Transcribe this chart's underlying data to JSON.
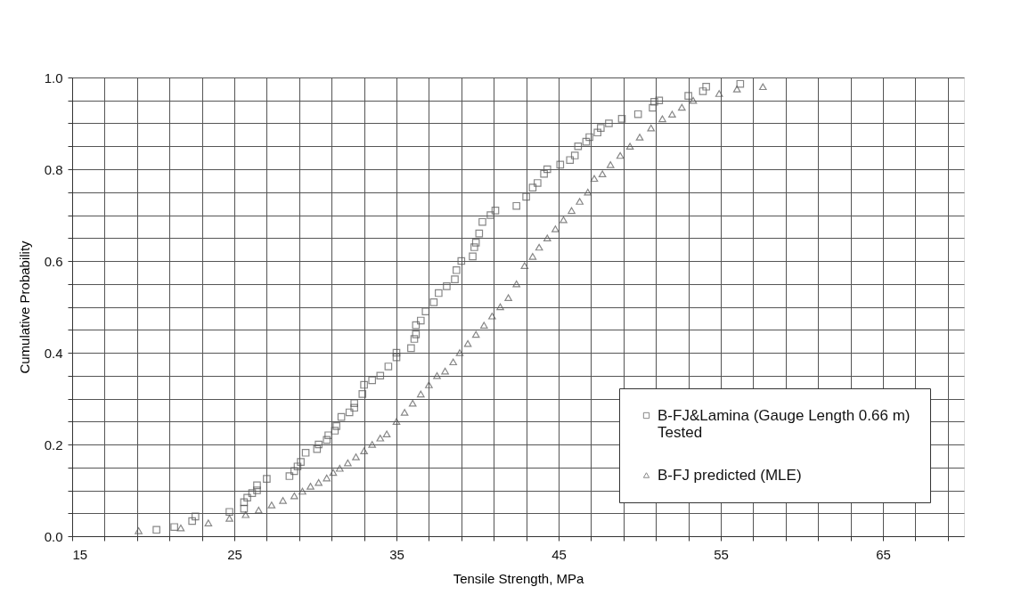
{
  "chart_data": {
    "type": "scatter",
    "xlabel": "Tensile Strength, MPa",
    "ylabel": "Cumulative Probability",
    "xlim": [
      15,
      70
    ],
    "ylim": [
      0,
      1
    ],
    "xticks": [
      15,
      {
        "value": 17,
        "label": null
      },
      {
        "value": 19,
        "label": null
      },
      {
        "value": 21,
        "label": null
      },
      {
        "value": 23,
        "label": null
      },
      25,
      {
        "value": 27,
        "label": null
      },
      {
        "value": 29,
        "label": null
      },
      {
        "value": 31,
        "label": null
      },
      {
        "value": 33,
        "label": null
      },
      35,
      {
        "value": 37,
        "label": null
      },
      {
        "value": 39,
        "label": null
      },
      {
        "value": 41,
        "label": null
      },
      {
        "value": 43,
        "label": null
      },
      45,
      {
        "value": 47,
        "label": null
      },
      {
        "value": 49,
        "label": null
      },
      {
        "value": 51,
        "label": null
      },
      {
        "value": 53,
        "label": null
      },
      55,
      {
        "value": 57,
        "label": null
      },
      {
        "value": 59,
        "label": null
      },
      {
        "value": 61,
        "label": null
      },
      {
        "value": 63,
        "label": null
      },
      65,
      {
        "value": 67,
        "label": null
      },
      {
        "value": 69,
        "label": null
      }
    ],
    "yticks": [
      {
        "value": 0,
        "label": "0.0"
      },
      {
        "value": 0.05,
        "label": null
      },
      {
        "value": 0.1,
        "label": null
      },
      {
        "value": 0.15,
        "label": null
      },
      0.2,
      {
        "value": 0.25,
        "label": null
      },
      {
        "value": 0.3,
        "label": null
      },
      {
        "value": 0.35,
        "label": null
      },
      0.4,
      {
        "value": 0.45,
        "label": null
      },
      {
        "value": 0.5,
        "label": null
      },
      {
        "value": 0.55,
        "label": null
      },
      0.6,
      {
        "value": 0.65,
        "label": null
      },
      {
        "value": 0.7,
        "label": null
      },
      {
        "value": 0.75,
        "label": null
      },
      0.8,
      {
        "value": 0.85,
        "label": null
      },
      {
        "value": 0.9,
        "label": null
      },
      {
        "value": 0.95,
        "label": null
      },
      {
        "value": 1,
        "label": "1.0"
      }
    ],
    "grid": true,
    "legend": "bottom right",
    "series": [
      {
        "name": "B-FJ&Lamina (Gauge Length 0.66 m) Tested",
        "color": "#555555",
        "marker": "square",
        "x": [
          20.2,
          21.3,
          22.4,
          22.6,
          24.7,
          25.6,
          25.6,
          25.8,
          26.1,
          26.4,
          26.4,
          27.0,
          28.4,
          28.7,
          28.9,
          29.1,
          29.4,
          30.1,
          30.2,
          30.7,
          30.8,
          31.2,
          31.3,
          31.6,
          32.1,
          32.4,
          32.4,
          32.9,
          33.0,
          33.5,
          34.0,
          34.5,
          35.0,
          35.0,
          35.9,
          36.1,
          36.2,
          36.2,
          36.5,
          36.8,
          37.3,
          37.6,
          38.1,
          38.6,
          38.7,
          39.0,
          39.7,
          39.8,
          39.9,
          40.1,
          40.3,
          40.8,
          41.1,
          42.4,
          43.0,
          43.4,
          43.7,
          44.1,
          44.3,
          45.1,
          45.7,
          46.0,
          46.2,
          46.7,
          46.9,
          47.4,
          47.6,
          48.1,
          48.9,
          49.9,
          50.8,
          50.9,
          51.2,
          53.0,
          53.9,
          54.1,
          56.2
        ],
        "values": [
          0.014,
          0.02,
          0.033,
          0.043,
          0.053,
          0.06,
          0.074,
          0.084,
          0.094,
          0.1,
          0.111,
          0.125,
          0.131,
          0.142,
          0.152,
          0.162,
          0.182,
          0.19,
          0.2,
          0.21,
          0.22,
          0.23,
          0.24,
          0.26,
          0.27,
          0.28,
          0.29,
          0.31,
          0.33,
          0.34,
          0.35,
          0.37,
          0.39,
          0.4,
          0.41,
          0.43,
          0.44,
          0.46,
          0.47,
          0.49,
          0.51,
          0.53,
          0.545,
          0.56,
          0.58,
          0.6,
          0.61,
          0.63,
          0.64,
          0.66,
          0.685,
          0.7,
          0.71,
          0.72,
          0.74,
          0.76,
          0.77,
          0.79,
          0.8,
          0.81,
          0.82,
          0.83,
          0.85,
          0.86,
          0.87,
          0.88,
          0.89,
          0.9,
          0.91,
          0.92,
          0.934,
          0.947,
          0.95,
          0.96,
          0.97,
          0.98,
          0.986
        ]
      },
      {
        "name": "B-FJ predicted (MLE)",
        "color": "#555555",
        "marker": "triangle",
        "x": [
          19.1,
          21.7,
          23.4,
          24.7,
          25.7,
          26.5,
          27.3,
          28.0,
          28.7,
          29.2,
          29.7,
          30.2,
          30.7,
          31.1,
          31.5,
          32.0,
          32.5,
          33.0,
          33.5,
          34.0,
          34.4,
          35.0,
          35.5,
          36.0,
          36.5,
          37.0,
          37.5,
          38.0,
          38.5,
          38.9,
          39.4,
          39.9,
          40.4,
          40.9,
          41.4,
          41.9,
          42.4,
          42.9,
          43.4,
          43.8,
          44.3,
          44.8,
          45.3,
          45.8,
          46.3,
          46.8,
          47.2,
          47.7,
          48.2,
          48.8,
          49.4,
          50.0,
          50.7,
          51.4,
          52.0,
          52.6,
          53.3,
          54.9,
          56.0,
          57.6
        ],
        "values": [
          0.012,
          0.018,
          0.029,
          0.039,
          0.047,
          0.057,
          0.068,
          0.078,
          0.088,
          0.098,
          0.109,
          0.117,
          0.127,
          0.139,
          0.148,
          0.16,
          0.173,
          0.186,
          0.2,
          0.214,
          0.223,
          0.25,
          0.27,
          0.29,
          0.31,
          0.33,
          0.35,
          0.36,
          0.38,
          0.4,
          0.42,
          0.44,
          0.46,
          0.48,
          0.5,
          0.52,
          0.55,
          0.59,
          0.61,
          0.63,
          0.65,
          0.67,
          0.69,
          0.71,
          0.73,
          0.75,
          0.78,
          0.79,
          0.81,
          0.83,
          0.85,
          0.87,
          0.89,
          0.91,
          0.92,
          0.935,
          0.95,
          0.965,
          0.975,
          0.98
        ]
      }
    ]
  }
}
